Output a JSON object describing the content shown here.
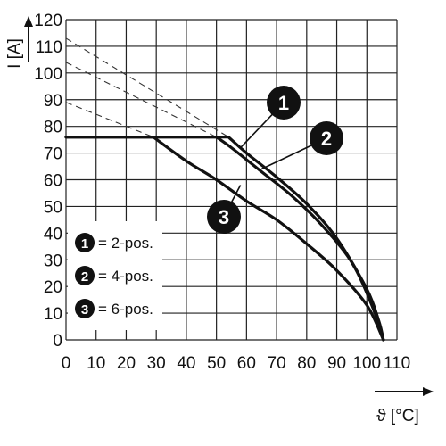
{
  "chart_data": {
    "type": "line",
    "xlabel": "ϑ [°C]",
    "ylabel": "I [A]",
    "xlim": [
      0,
      110
    ],
    "ylim": [
      0,
      120
    ],
    "x_ticks": [
      "0",
      "10",
      "20",
      "30",
      "40",
      "50",
      "60",
      "70",
      "80",
      "90",
      "100",
      "110"
    ],
    "y_ticks": [
      "0",
      "10",
      "20",
      "30",
      "40",
      "50",
      "60",
      "70",
      "80",
      "90",
      "100",
      "110",
      "120"
    ],
    "grid": true,
    "legend_position": "bottom-left",
    "colors": {
      "curve": "#111111",
      "dashed": "#333333",
      "grid": "#222222",
      "badge": "#111111"
    },
    "series": [
      {
        "name": "2-pos.",
        "badge": "1",
        "legend": "= 2-pos.",
        "points": [
          [
            0,
            76
          ],
          [
            54,
            76
          ],
          [
            60,
            70
          ],
          [
            70,
            61
          ],
          [
            80,
            51
          ],
          [
            90,
            38
          ],
          [
            100,
            19
          ],
          [
            104,
            7
          ],
          [
            105.5,
            0
          ]
        ],
        "dashed_extension": [
          [
            0,
            113
          ],
          [
            54,
            76
          ]
        ]
      },
      {
        "name": "4-pos.",
        "badge": "2",
        "legend": "= 4-pos.",
        "points": [
          [
            0,
            76
          ],
          [
            50,
            76
          ],
          [
            55,
            72
          ],
          [
            65,
            63
          ],
          [
            75,
            54
          ],
          [
            85,
            43
          ],
          [
            95,
            29
          ],
          [
            102,
            12
          ],
          [
            105.5,
            0
          ]
        ],
        "dashed_extension": [
          [
            0,
            104
          ],
          [
            50,
            76
          ]
        ]
      },
      {
        "name": "6-pos.",
        "badge": "3",
        "legend": "= 6-pos.",
        "points": [
          [
            0,
            76
          ],
          [
            29,
            76
          ],
          [
            40,
            67
          ],
          [
            50,
            60
          ],
          [
            60,
            52
          ],
          [
            70,
            45
          ],
          [
            80,
            36
          ],
          [
            90,
            26
          ],
          [
            100,
            13
          ],
          [
            105.5,
            0
          ]
        ],
        "dashed_extension": [
          [
            0,
            89
          ],
          [
            29,
            76
          ]
        ]
      }
    ],
    "callouts": [
      {
        "badge": "1",
        "target": [
          58,
          72
        ]
      },
      {
        "badge": "2",
        "target": [
          65,
          64
        ]
      },
      {
        "badge": "3",
        "target": [
          58,
          58
        ]
      }
    ]
  }
}
